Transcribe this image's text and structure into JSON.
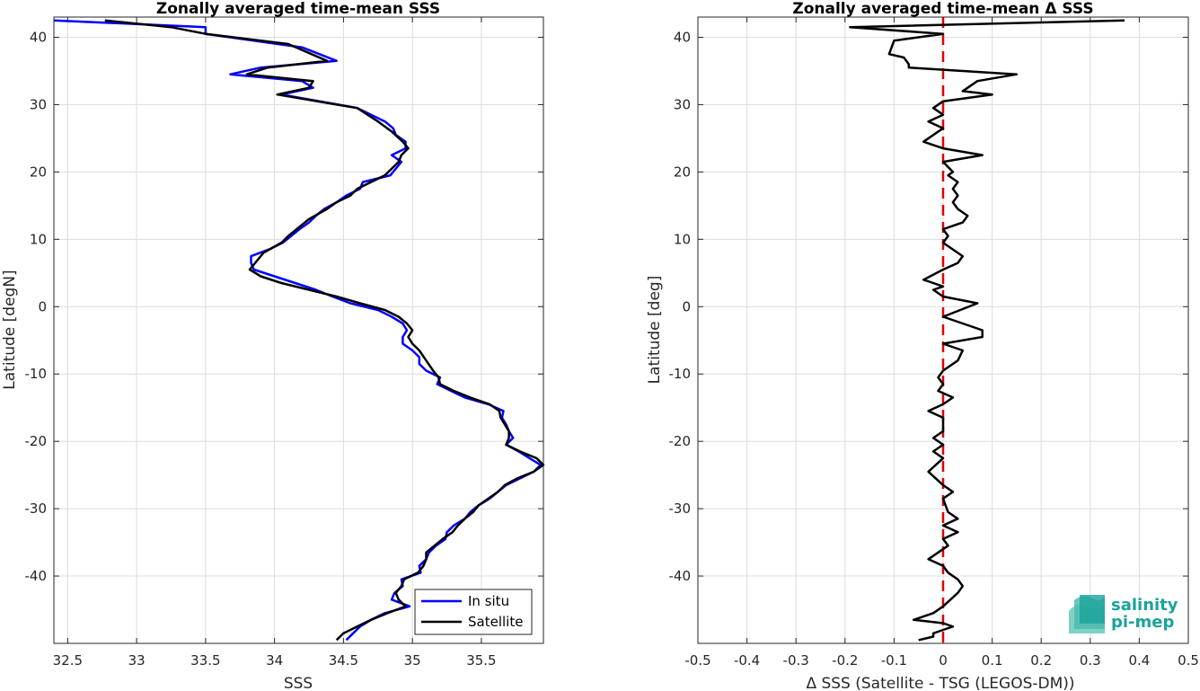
{
  "chart_data": [
    {
      "type": "line",
      "title": "Zonally averaged time-mean SSS",
      "xlabel": "SSS",
      "ylabel": "Latitude [degN]",
      "xlim": [
        32.4,
        35.95
      ],
      "ylim": [
        -50,
        43
      ],
      "xticks": [
        32.5,
        33,
        33.5,
        34,
        34.5,
        35,
        35.5
      ],
      "yticks": [
        -40,
        -30,
        -20,
        -10,
        0,
        10,
        20,
        30,
        40
      ],
      "grid": true,
      "legend": {
        "placement": "bottom-right",
        "entries": [
          "In situ",
          "Satellite"
        ]
      },
      "series": [
        {
          "name": "In situ",
          "color": "#0000ff",
          "points": [
            [
              32.4,
              42.5
            ],
            [
              33.5,
              41.5
            ],
            [
              33.5,
              40.5
            ],
            [
              34.2,
              38.5
            ],
            [
              34.45,
              36.5
            ],
            [
              33.9,
              35.5
            ],
            [
              33.68,
              34.5
            ],
            [
              34.2,
              33.5
            ],
            [
              34.28,
              32.5
            ],
            [
              34.05,
              31.5
            ],
            [
              34.6,
              29.5
            ],
            [
              34.8,
              27.5
            ],
            [
              34.86,
              26.5
            ],
            [
              34.88,
              25.5
            ],
            [
              34.95,
              24.5
            ],
            [
              34.95,
              23.5
            ],
            [
              34.85,
              22.5
            ],
            [
              34.92,
              21.5
            ],
            [
              34.84,
              19.5
            ],
            [
              34.64,
              18.5
            ],
            [
              34.62,
              17.5
            ],
            [
              34.52,
              16.5
            ],
            [
              34.45,
              15.5
            ],
            [
              34.36,
              14.5
            ],
            [
              34.3,
              13.5
            ],
            [
              34.25,
              12.5
            ],
            [
              34.18,
              11.5
            ],
            [
              34.12,
              10.5
            ],
            [
              34.06,
              9.5
            ],
            [
              33.96,
              8.5
            ],
            [
              33.83,
              7.5
            ],
            [
              33.83,
              6.5
            ],
            [
              33.85,
              5.5
            ],
            [
              34.0,
              4.5
            ],
            [
              34.15,
              3.5
            ],
            [
              34.3,
              2.5
            ],
            [
              34.42,
              1.5
            ],
            [
              34.55,
              0.5
            ],
            [
              34.75,
              -0.5
            ],
            [
              34.85,
              -1.5
            ],
            [
              34.93,
              -2.5
            ],
            [
              34.96,
              -3.5
            ],
            [
              34.93,
              -4.5
            ],
            [
              34.93,
              -5.5
            ],
            [
              35.0,
              -6.5
            ],
            [
              35.05,
              -7.5
            ],
            [
              35.05,
              -8.5
            ],
            [
              35.1,
              -9.5
            ],
            [
              35.2,
              -10.5
            ],
            [
              35.18,
              -11.5
            ],
            [
              35.28,
              -12.5
            ],
            [
              35.38,
              -13.5
            ],
            [
              35.55,
              -14.5
            ],
            [
              35.66,
              -15.5
            ],
            [
              35.65,
              -16.5
            ],
            [
              35.68,
              -17.5
            ],
            [
              35.7,
              -18.5
            ],
            [
              35.73,
              -19.5
            ],
            [
              35.68,
              -20.5
            ],
            [
              35.77,
              -21.5
            ],
            [
              35.85,
              -22.5
            ],
            [
              35.93,
              -23.5
            ],
            [
              35.88,
              -24.5
            ],
            [
              35.78,
              -25.5
            ],
            [
              35.68,
              -26.5
            ],
            [
              35.62,
              -27.5
            ],
            [
              35.56,
              -28.5
            ],
            [
              35.48,
              -29.5
            ],
            [
              35.42,
              -30.5
            ],
            [
              35.38,
              -31.5
            ],
            [
              35.3,
              -32.5
            ],
            [
              35.25,
              -33.5
            ],
            [
              35.24,
              -34.5
            ],
            [
              35.17,
              -35.5
            ],
            [
              35.12,
              -36.5
            ],
            [
              35.1,
              -37.5
            ],
            [
              35.05,
              -38.5
            ],
            [
              35.06,
              -39.5
            ],
            [
              34.92,
              -40.5
            ],
            [
              34.93,
              -41.5
            ],
            [
              34.87,
              -42.5
            ],
            [
              34.85,
              -43.5
            ],
            [
              34.98,
              -44.5
            ],
            [
              34.8,
              -45.5
            ],
            [
              34.7,
              -46.5
            ],
            [
              34.62,
              -47.5
            ],
            [
              34.57,
              -48.5
            ],
            [
              34.52,
              -49.5
            ]
          ]
        },
        {
          "name": "Satellite",
          "color": "#000000",
          "points": [
            [
              32.77,
              42.5
            ],
            [
              33.25,
              41.5
            ],
            [
              33.5,
              40.5
            ],
            [
              34.1,
              39.0
            ],
            [
              34.38,
              36.5
            ],
            [
              33.95,
              35.5
            ],
            [
              33.8,
              34.5
            ],
            [
              34.28,
              33.5
            ],
            [
              34.25,
              32.5
            ],
            [
              34.02,
              31.5
            ],
            [
              34.6,
              29.5
            ],
            [
              34.75,
              27.5
            ],
            [
              34.85,
              26.0
            ],
            [
              34.93,
              24.5
            ],
            [
              34.97,
              23.5
            ],
            [
              34.92,
              22.5
            ],
            [
              34.9,
              21.5
            ],
            [
              34.8,
              19.5
            ],
            [
              34.7,
              18.5
            ],
            [
              34.6,
              17.5
            ],
            [
              34.55,
              16.5
            ],
            [
              34.45,
              15.5
            ],
            [
              34.38,
              14.5
            ],
            [
              34.25,
              13.0
            ],
            [
              34.16,
              11.5
            ],
            [
              34.1,
              10.5
            ],
            [
              34.05,
              9.5
            ],
            [
              33.92,
              8.0
            ],
            [
              33.88,
              7.0
            ],
            [
              33.82,
              5.5
            ],
            [
              33.9,
              4.5
            ],
            [
              34.05,
              3.5
            ],
            [
              34.25,
              2.5
            ],
            [
              34.45,
              1.5
            ],
            [
              34.62,
              0.5
            ],
            [
              34.8,
              -0.5
            ],
            [
              34.9,
              -1.5
            ],
            [
              34.96,
              -2.5
            ],
            [
              35.0,
              -3.5
            ],
            [
              34.97,
              -4.5
            ],
            [
              35.0,
              -5.5
            ],
            [
              35.05,
              -6.5
            ],
            [
              35.1,
              -8.0
            ],
            [
              35.15,
              -9.5
            ],
            [
              35.19,
              -10.5
            ],
            [
              35.2,
              -11.5
            ],
            [
              35.3,
              -12.5
            ],
            [
              35.42,
              -13.5
            ],
            [
              35.56,
              -14.5
            ],
            [
              35.63,
              -15.5
            ],
            [
              35.64,
              -16.5
            ],
            [
              35.67,
              -17.5
            ],
            [
              35.7,
              -18.5
            ],
            [
              35.7,
              -19.5
            ],
            [
              35.68,
              -20.5
            ],
            [
              35.78,
              -21.5
            ],
            [
              35.9,
              -22.5
            ],
            [
              35.96,
              -23.5
            ],
            [
              35.88,
              -24.5
            ],
            [
              35.76,
              -25.5
            ],
            [
              35.67,
              -26.5
            ],
            [
              35.62,
              -27.5
            ],
            [
              35.55,
              -28.5
            ],
            [
              35.48,
              -29.5
            ],
            [
              35.44,
              -30.5
            ],
            [
              35.38,
              -31.5
            ],
            [
              35.33,
              -32.5
            ],
            [
              35.29,
              -33.5
            ],
            [
              35.22,
              -34.5
            ],
            [
              35.16,
              -35.5
            ],
            [
              35.1,
              -36.5
            ],
            [
              35.1,
              -37.5
            ],
            [
              35.08,
              -38.5
            ],
            [
              35.04,
              -39.5
            ],
            [
              34.94,
              -40.5
            ],
            [
              34.92,
              -41.5
            ],
            [
              34.88,
              -42.5
            ],
            [
              34.9,
              -43.5
            ],
            [
              34.95,
              -44.5
            ],
            [
              34.82,
              -45.5
            ],
            [
              34.7,
              -46.5
            ],
            [
              34.6,
              -47.5
            ],
            [
              34.5,
              -48.5
            ],
            [
              34.45,
              -49.5
            ]
          ]
        }
      ]
    },
    {
      "type": "line",
      "title": "Zonally averaged time-mean Δ SSS",
      "xlabel": "Δ SSS (Satellite - TSG (LEGOS-DM))",
      "ylabel": "Latitude [deg]",
      "xlim": [
        -0.5,
        0.5
      ],
      "ylim": [
        -50,
        43
      ],
      "xticks": [
        -0.5,
        -0.4,
        -0.3,
        -0.2,
        -0.1,
        0,
        0.1,
        0.2,
        0.3,
        0.4,
        0.5
      ],
      "yticks": [
        -40,
        -30,
        -20,
        -10,
        0,
        10,
        20,
        30,
        40
      ],
      "grid": true,
      "reference_line": {
        "x": 0,
        "color": "#e00000",
        "style": "dashed"
      },
      "series": [
        {
          "name": "",
          "color": "#000000",
          "points": [
            [
              0.37,
              42.5
            ],
            [
              -0.19,
              41.5
            ],
            [
              0.0,
              40.5
            ],
            [
              -0.1,
              39.5
            ],
            [
              -0.11,
              37.5
            ],
            [
              -0.08,
              37.0
            ],
            [
              -0.07,
              36.0
            ],
            [
              -0.07,
              35.5
            ],
            [
              0.15,
              34.5
            ],
            [
              0.07,
              33.5
            ],
            [
              0.05,
              32.5
            ],
            [
              0.04,
              32.0
            ],
            [
              0.1,
              31.5
            ],
            [
              0.0,
              30.5
            ],
            [
              -0.02,
              29.5
            ],
            [
              0.0,
              28.5
            ],
            [
              -0.03,
              27.5
            ],
            [
              0.0,
              26.5
            ],
            [
              -0.02,
              25.5
            ],
            [
              -0.04,
              24.5
            ],
            [
              -0.02,
              24.0
            ],
            [
              0.0,
              23.5
            ],
            [
              0.08,
              22.5
            ],
            [
              0.0,
              21.5
            ],
            [
              0.02,
              20.0
            ],
            [
              0.01,
              19.5
            ],
            [
              0.03,
              18.5
            ],
            [
              0.02,
              17.5
            ],
            [
              0.03,
              16.5
            ],
            [
              0.02,
              15.5
            ],
            [
              0.03,
              14.5
            ],
            [
              0.05,
              13.5
            ],
            [
              0.04,
              12.5
            ],
            [
              0.0,
              11.5
            ],
            [
              0.01,
              10.5
            ],
            [
              0.0,
              9.5
            ],
            [
              0.02,
              8.5
            ],
            [
              0.04,
              7.5
            ],
            [
              0.03,
              6.5
            ],
            [
              0.0,
              5.5
            ],
            [
              -0.04,
              4.0
            ],
            [
              -0.02,
              3.5
            ],
            [
              0.0,
              3.0
            ],
            [
              -0.02,
              2.5
            ],
            [
              0.0,
              1.5
            ],
            [
              0.07,
              0.5
            ],
            [
              0.0,
              -1.5
            ],
            [
              0.08,
              -3.5
            ],
            [
              0.08,
              -4.5
            ],
            [
              0.0,
              -5.5
            ],
            [
              0.04,
              -6.5
            ],
            [
              0.03,
              -8.0
            ],
            [
              0.0,
              -9.5
            ],
            [
              -0.01,
              -10.5
            ],
            [
              0.0,
              -11.5
            ],
            [
              -0.01,
              -12.5
            ],
            [
              0.02,
              -13.5
            ],
            [
              0.0,
              -14.5
            ],
            [
              -0.03,
              -15.5
            ],
            [
              0.0,
              -16.5
            ],
            [
              0.0,
              -18.5
            ],
            [
              -0.02,
              -19.5
            ],
            [
              0.0,
              -20.5
            ],
            [
              -0.02,
              -21.5
            ],
            [
              0.0,
              -22.5
            ],
            [
              -0.03,
              -24.5
            ],
            [
              0.0,
              -26.5
            ],
            [
              0.02,
              -27.5
            ],
            [
              0.0,
              -28.5
            ],
            [
              0.01,
              -30.5
            ],
            [
              0.03,
              -31.5
            ],
            [
              0.0,
              -32.5
            ],
            [
              0.03,
              -33.5
            ],
            [
              0.0,
              -34.5
            ],
            [
              0.01,
              -35.5
            ],
            [
              -0.03,
              -37.5
            ],
            [
              0.0,
              -38.5
            ],
            [
              0.01,
              -39.5
            ],
            [
              0.03,
              -40.5
            ],
            [
              0.04,
              -41.5
            ],
            [
              0.03,
              -42.5
            ],
            [
              0.0,
              -44.5
            ],
            [
              -0.02,
              -45.5
            ],
            [
              -0.06,
              -46.5
            ],
            [
              0.0,
              -47.0
            ],
            [
              0.02,
              -47.5
            ],
            [
              0.0,
              -48.0
            ],
            [
              -0.02,
              -48.5
            ],
            [
              -0.02,
              -49.0
            ],
            [
              -0.05,
              -49.5
            ]
          ]
        }
      ]
    }
  ],
  "logo": {
    "line1": "salinity",
    "line2": "pi-mep",
    "color": "#1aa39a"
  }
}
